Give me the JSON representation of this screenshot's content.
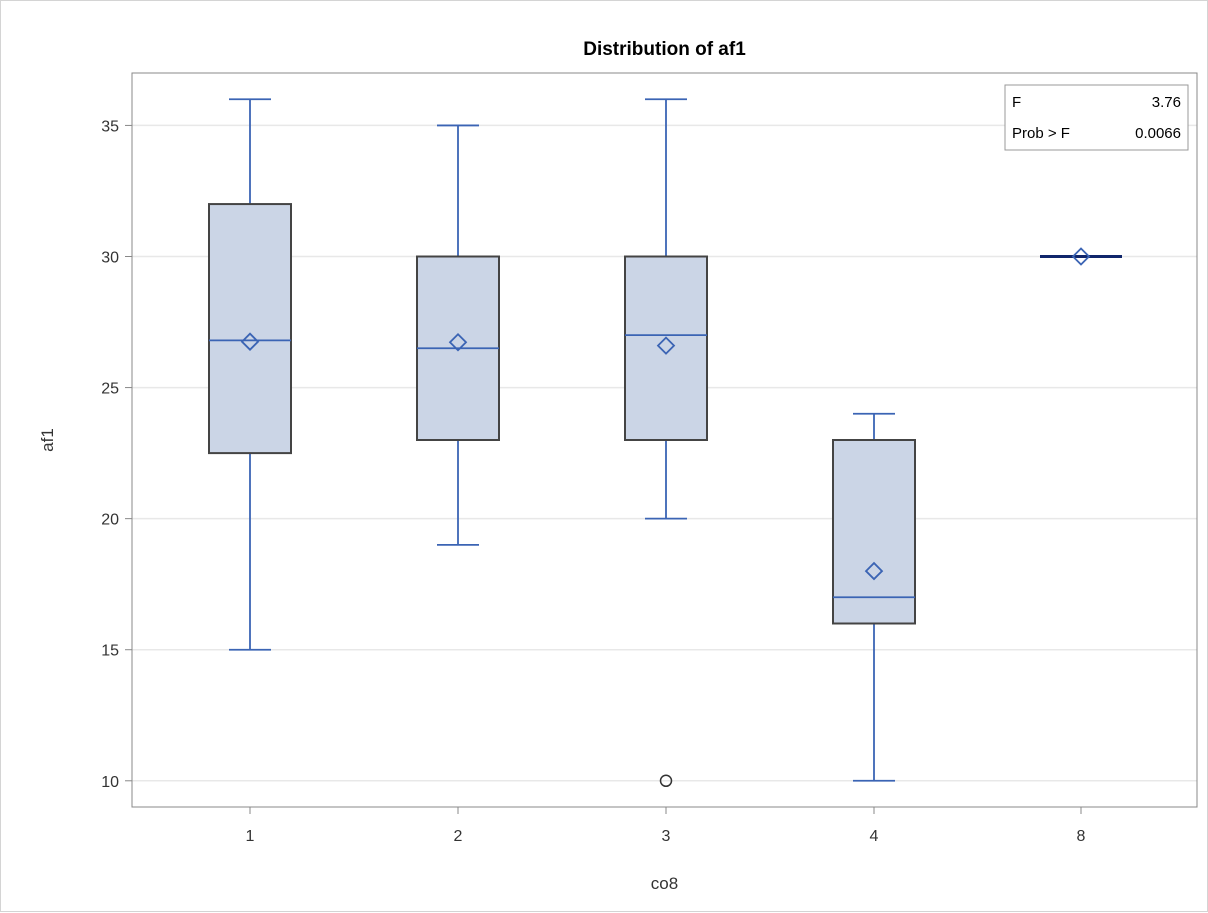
{
  "chart_data": {
    "type": "box",
    "title": "Distribution of af1",
    "xlabel": "co8",
    "ylabel": "af1",
    "categories": [
      "1",
      "2",
      "3",
      "4",
      "8"
    ],
    "ylim": [
      9,
      37
    ],
    "yticks": [
      10,
      15,
      20,
      25,
      30,
      35
    ],
    "grid": "horizontal",
    "boxes": [
      {
        "category": "1",
        "whisker_low": 15,
        "q1": 22.5,
        "median": 26.8,
        "q3": 32,
        "whisker_high": 36,
        "mean": 26.75,
        "outliers": []
      },
      {
        "category": "2",
        "whisker_low": 19,
        "q1": 23,
        "median": 26.5,
        "q3": 30,
        "whisker_high": 35,
        "mean": 26.73,
        "outliers": []
      },
      {
        "category": "3",
        "whisker_low": 20,
        "q1": 23,
        "median": 27,
        "q3": 30,
        "whisker_high": 36,
        "mean": 26.6,
        "outliers": [
          10
        ]
      },
      {
        "category": "4",
        "whisker_low": 10,
        "q1": 16,
        "median": 17,
        "q3": 23,
        "whisker_high": 24,
        "mean": 18,
        "outliers": []
      },
      {
        "category": "8",
        "whisker_low": 30,
        "q1": 30,
        "median": 30,
        "q3": 30,
        "whisker_high": 30,
        "mean": 30,
        "outliers": []
      }
    ],
    "inset": {
      "placement": "top-right",
      "rows": [
        {
          "label": "F",
          "value": "3.76"
        },
        {
          "label": "Prob > F",
          "value": "0.0066"
        }
      ]
    },
    "colors": {
      "box_fill": "#cbd5e6",
      "box_edge": "#444444",
      "whisker": "#3b64b4",
      "mean_marker": "#3b64b4",
      "grid": "#e8e8e8",
      "axis": "#888888",
      "single_value_line": "#10266b"
    }
  }
}
